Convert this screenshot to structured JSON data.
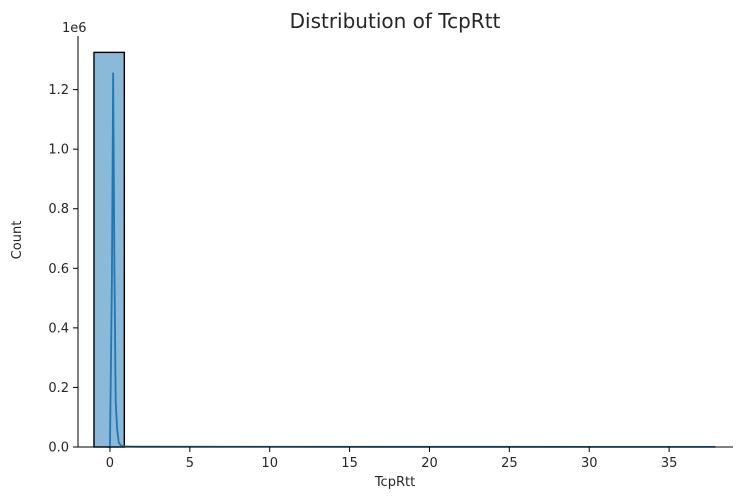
{
  "chart_data": {
    "type": "histogram",
    "title": "Distribution of TcpRtt",
    "xlabel": "TcpRtt",
    "ylabel": "Count",
    "y_scale_label": "1e6",
    "xlim": [
      -2.0,
      39.0
    ],
    "ylim": [
      0,
      1.38
    ],
    "x_ticks": [
      0,
      5,
      10,
      15,
      20,
      25,
      30,
      35
    ],
    "y_ticks": [
      0.0,
      0.2,
      0.4,
      0.6,
      0.8,
      1.0,
      1.2
    ],
    "bins": [
      {
        "x0": -1.0,
        "x1": 0.9,
        "count": 1.325
      }
    ],
    "kde": {
      "color": "#1f77b4",
      "x": [
        -0.2,
        0.0,
        0.12,
        0.2,
        0.28,
        0.36,
        0.45,
        0.55,
        0.7,
        1.0,
        2.0,
        10.0,
        20.0,
        30.0,
        37.9
      ],
      "y": [
        0.0,
        0.0,
        0.55,
        1.255,
        0.6,
        0.15,
        0.06,
        0.015,
        0.004,
        0.0015,
        0.001,
        0.0008,
        0.0006,
        0.0005,
        0.0005
      ]
    },
    "bar_fill": "#8bbad9",
    "bar_edge": "#000000",
    "spines": [
      "left",
      "bottom"
    ],
    "grid": false
  }
}
